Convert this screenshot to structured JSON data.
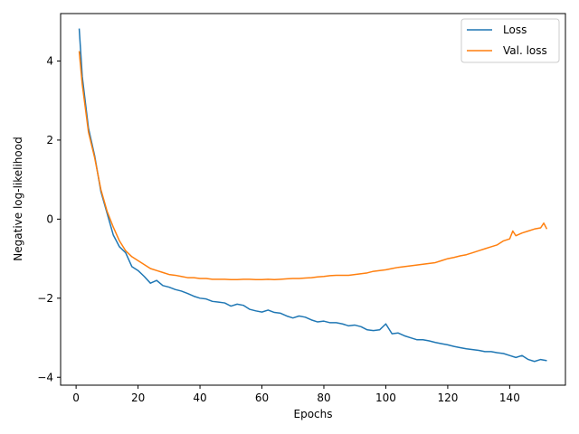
{
  "chart_data": {
    "type": "line",
    "title": "",
    "xlabel": "Epochs",
    "ylabel": "Negative log-likelihood",
    "xlim": [
      -5,
      158
    ],
    "ylim": [
      -4.2,
      5.2
    ],
    "xticks": [
      0,
      20,
      40,
      60,
      80,
      100,
      120,
      140
    ],
    "yticks": [
      -4,
      -2,
      0,
      2,
      4
    ],
    "grid": false,
    "legend_position": "top-right",
    "series": [
      {
        "name": "Loss",
        "color": "#1f77b4",
        "x": [
          1,
          2,
          4,
          6,
          8,
          10,
          12,
          14,
          16,
          18,
          20,
          22,
          24,
          26,
          28,
          30,
          32,
          34,
          36,
          38,
          40,
          42,
          44,
          46,
          48,
          50,
          52,
          54,
          56,
          58,
          60,
          62,
          64,
          66,
          68,
          70,
          72,
          74,
          76,
          78,
          80,
          82,
          84,
          86,
          88,
          90,
          92,
          94,
          96,
          98,
          100,
          102,
          104,
          106,
          108,
          110,
          112,
          114,
          116,
          118,
          120,
          122,
          124,
          126,
          128,
          130,
          132,
          134,
          136,
          138,
          140,
          142,
          144,
          146,
          148,
          150,
          152
        ],
        "values": [
          4.82,
          3.6,
          2.3,
          1.6,
          0.7,
          0.15,
          -0.4,
          -0.7,
          -0.85,
          -1.2,
          -1.3,
          -1.45,
          -1.62,
          -1.55,
          -1.68,
          -1.72,
          -1.78,
          -1.82,
          -1.88,
          -1.95,
          -2.0,
          -2.02,
          -2.08,
          -2.1,
          -2.12,
          -2.2,
          -2.15,
          -2.18,
          -2.28,
          -2.32,
          -2.35,
          -2.3,
          -2.36,
          -2.38,
          -2.45,
          -2.5,
          -2.45,
          -2.48,
          -2.55,
          -2.6,
          -2.58,
          -2.62,
          -2.62,
          -2.65,
          -2.7,
          -2.68,
          -2.72,
          -2.8,
          -2.82,
          -2.8,
          -2.65,
          -2.9,
          -2.88,
          -2.95,
          -3.0,
          -3.05,
          -3.05,
          -3.08,
          -3.12,
          -3.15,
          -3.18,
          -3.22,
          -3.25,
          -3.28,
          -3.3,
          -3.32,
          -3.35,
          -3.35,
          -3.38,
          -3.4,
          -3.45,
          -3.5,
          -3.45,
          -3.55,
          -3.6,
          -3.55,
          -3.58
        ]
      },
      {
        "name": "Val. loss",
        "color": "#ff7f0e",
        "x": [
          1,
          2,
          4,
          6,
          8,
          10,
          12,
          14,
          16,
          18,
          20,
          22,
          24,
          26,
          28,
          30,
          32,
          34,
          36,
          38,
          40,
          42,
          44,
          46,
          48,
          50,
          52,
          54,
          56,
          58,
          60,
          62,
          64,
          66,
          68,
          70,
          72,
          74,
          76,
          78,
          80,
          82,
          84,
          86,
          88,
          90,
          92,
          94,
          96,
          98,
          100,
          102,
          104,
          106,
          108,
          110,
          112,
          114,
          116,
          118,
          120,
          122,
          124,
          126,
          128,
          130,
          132,
          134,
          136,
          138,
          140,
          141,
          142,
          144,
          146,
          148,
          150,
          151,
          152
        ],
        "values": [
          4.25,
          3.4,
          2.2,
          1.55,
          0.75,
          0.2,
          -0.2,
          -0.55,
          -0.8,
          -0.95,
          -1.05,
          -1.15,
          -1.25,
          -1.3,
          -1.35,
          -1.4,
          -1.42,
          -1.45,
          -1.48,
          -1.48,
          -1.5,
          -1.5,
          -1.52,
          -1.52,
          -1.52,
          -1.53,
          -1.53,
          -1.52,
          -1.52,
          -1.53,
          -1.53,
          -1.52,
          -1.53,
          -1.52,
          -1.51,
          -1.5,
          -1.5,
          -1.49,
          -1.48,
          -1.46,
          -1.45,
          -1.43,
          -1.42,
          -1.42,
          -1.42,
          -1.4,
          -1.38,
          -1.36,
          -1.32,
          -1.3,
          -1.28,
          -1.25,
          -1.22,
          -1.2,
          -1.18,
          -1.16,
          -1.14,
          -1.12,
          -1.1,
          -1.05,
          -1.0,
          -0.97,
          -0.93,
          -0.9,
          -0.85,
          -0.8,
          -0.75,
          -0.7,
          -0.65,
          -0.55,
          -0.5,
          -0.3,
          -0.42,
          -0.35,
          -0.3,
          -0.25,
          -0.22,
          -0.1,
          -0.25
        ]
      }
    ]
  }
}
